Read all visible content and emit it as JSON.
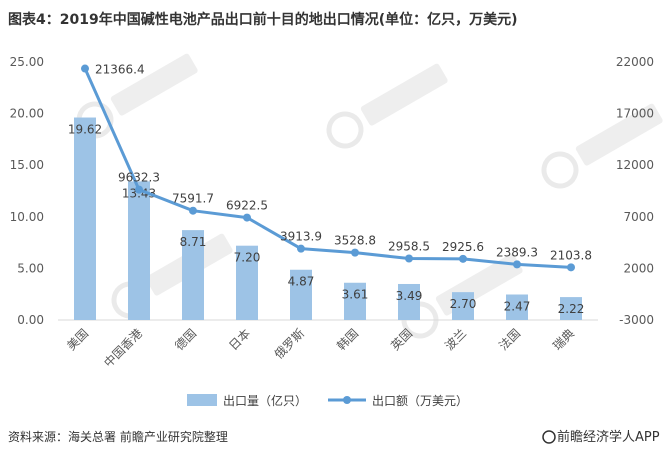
{
  "chart_data": {
    "type": "bar",
    "title": "图表4：2019年中国碱性电池产品出口前十目的地出口情况(单位：亿只，万美元)",
    "categories": [
      "美国",
      "中国香港",
      "德国",
      "日本",
      "俄罗斯",
      "韩国",
      "英国",
      "波兰",
      "法国",
      "瑞典"
    ],
    "series": [
      {
        "name": "出口量（亿只）",
        "type": "bar",
        "axis": "left",
        "values": [
          19.62,
          13.43,
          8.71,
          7.2,
          4.87,
          3.61,
          3.49,
          2.7,
          2.47,
          2.22
        ],
        "labels": [
          "19.62",
          "13.43",
          "8.71",
          "7.20",
          "4.87",
          "3.61",
          "3.49",
          "2.70",
          "2.47",
          "2.22"
        ]
      },
      {
        "name": "出口额（万美元）",
        "type": "line",
        "axis": "right",
        "values": [
          21366.4,
          9632.3,
          7591.7,
          6922.5,
          3913.9,
          3528.8,
          2958.5,
          2925.6,
          2389.3,
          2103.8
        ],
        "labels": [
          "21366.4",
          "9632.3",
          "7591.7",
          "6922.5",
          "3913.9",
          "3528.8",
          "2958.5",
          "2925.6",
          "2389.3",
          "2103.8"
        ]
      }
    ],
    "y_left": {
      "min": 0,
      "max": 25,
      "ticks": [
        0,
        5,
        10,
        15,
        20,
        25
      ],
      "tick_labels": [
        "0.00",
        "5.00",
        "10.00",
        "15.00",
        "20.00",
        "25.00"
      ]
    },
    "y_right": {
      "min": -3000,
      "max": 22000,
      "ticks": [
        -3000,
        2000,
        7000,
        12000,
        17000,
        22000
      ],
      "tick_labels": [
        "-3000",
        "2000",
        "7000",
        "12000",
        "17000",
        "22000"
      ]
    },
    "legend_position": "bottom",
    "grid": false
  },
  "colors": {
    "bar": "#9dc3e6",
    "line": "#5b9bd5",
    "axis": "#d9d9d9"
  },
  "footer": {
    "source": "资料来源：海关总署 前瞻产业研究院整理",
    "brand": "前瞻经济学人APP"
  }
}
